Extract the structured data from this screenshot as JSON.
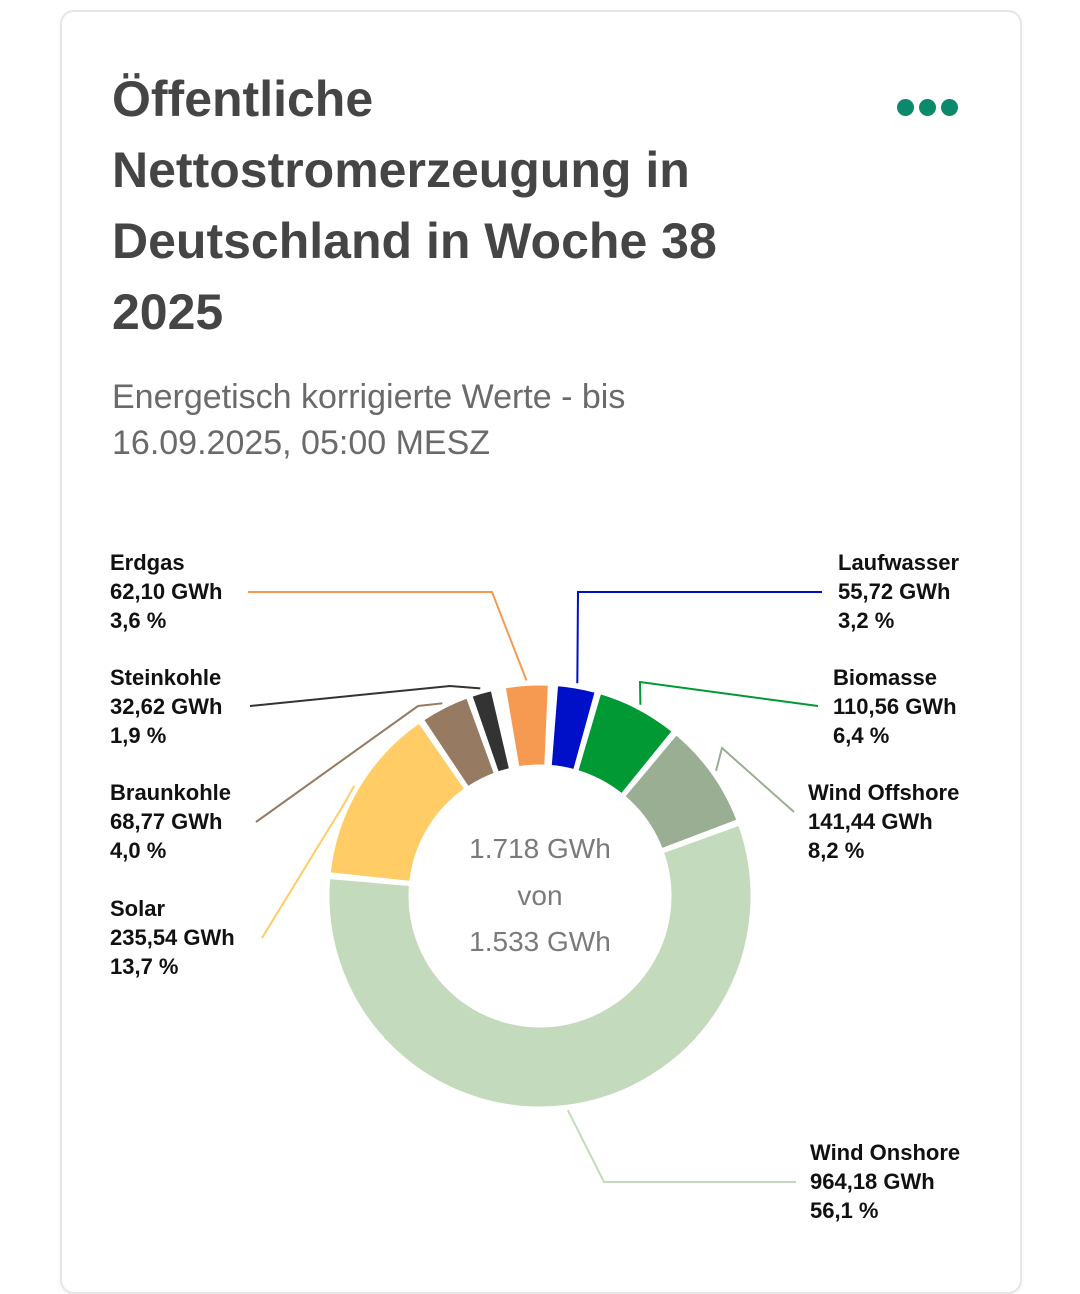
{
  "chart_data": {
    "type": "pie",
    "title": "Öffentliche Nettostromerzeugung in Deutschland in Woche 38 2025",
    "subtitle": "Energetisch korrigierte Werte - bis 16.09.2025, 05:00 MESZ",
    "unit": "GWh",
    "center": {
      "line1": "1.718 GWh",
      "line2": "von",
      "line3": "1.533 GWh"
    },
    "slices": [
      {
        "name": "Laufwasser",
        "value": 55.72,
        "value_label": "55,72 GWh",
        "percent_label": "3,2 %",
        "color": "#0010c8",
        "labeled": true
      },
      {
        "name": "Biomasse",
        "value": 110.56,
        "value_label": "110,56 GWh",
        "percent_label": "6,4 %",
        "color": "#009933",
        "labeled": true
      },
      {
        "name": "Wind Offshore",
        "value": 141.44,
        "value_label": "141,44 GWh",
        "percent_label": "8,2 %",
        "color": "#9aae93",
        "labeled": true
      },
      {
        "name": "Wind Onshore",
        "value": 964.18,
        "value_label": "964,18 GWh",
        "percent_label": "56,1 %",
        "color": "#c3dbbc",
        "labeled": true
      },
      {
        "name": "Solar",
        "value": 235.54,
        "value_label": "235,54 GWh",
        "percent_label": "13,7 %",
        "color": "#ffcc66",
        "labeled": true
      },
      {
        "name": "Braunkohle",
        "value": 68.77,
        "value_label": "68,77 GWh",
        "percent_label": "4,0 %",
        "color": "#967a62",
        "labeled": true
      },
      {
        "name": "Steinkohle",
        "value": 32.62,
        "value_label": "32,62 GWh",
        "percent_label": "1,9 %",
        "color": "#333333",
        "labeled": true
      },
      {
        "name": "",
        "value": 5.0,
        "color": "#b0b0a8",
        "labeled": false
      },
      {
        "name": "",
        "value": 6.0,
        "color": "#e0c890",
        "labeled": false
      },
      {
        "name": "Erdgas",
        "value": 62.1,
        "value_label": "62,10 GWh",
        "percent_label": "3,6 %",
        "color": "#f59a50",
        "labeled": true
      },
      {
        "name": "",
        "value": 1.5,
        "color": "#d9c27a",
        "labeled": false
      },
      {
        "name": "",
        "value": 1.5,
        "color": "#6a4020",
        "labeled": false
      },
      {
        "name": "",
        "value": 1.5,
        "color": "#1a1a1a",
        "labeled": false
      }
    ]
  },
  "menu_icon": "more-dots-icon",
  "accent_color": "#0a8a6a"
}
